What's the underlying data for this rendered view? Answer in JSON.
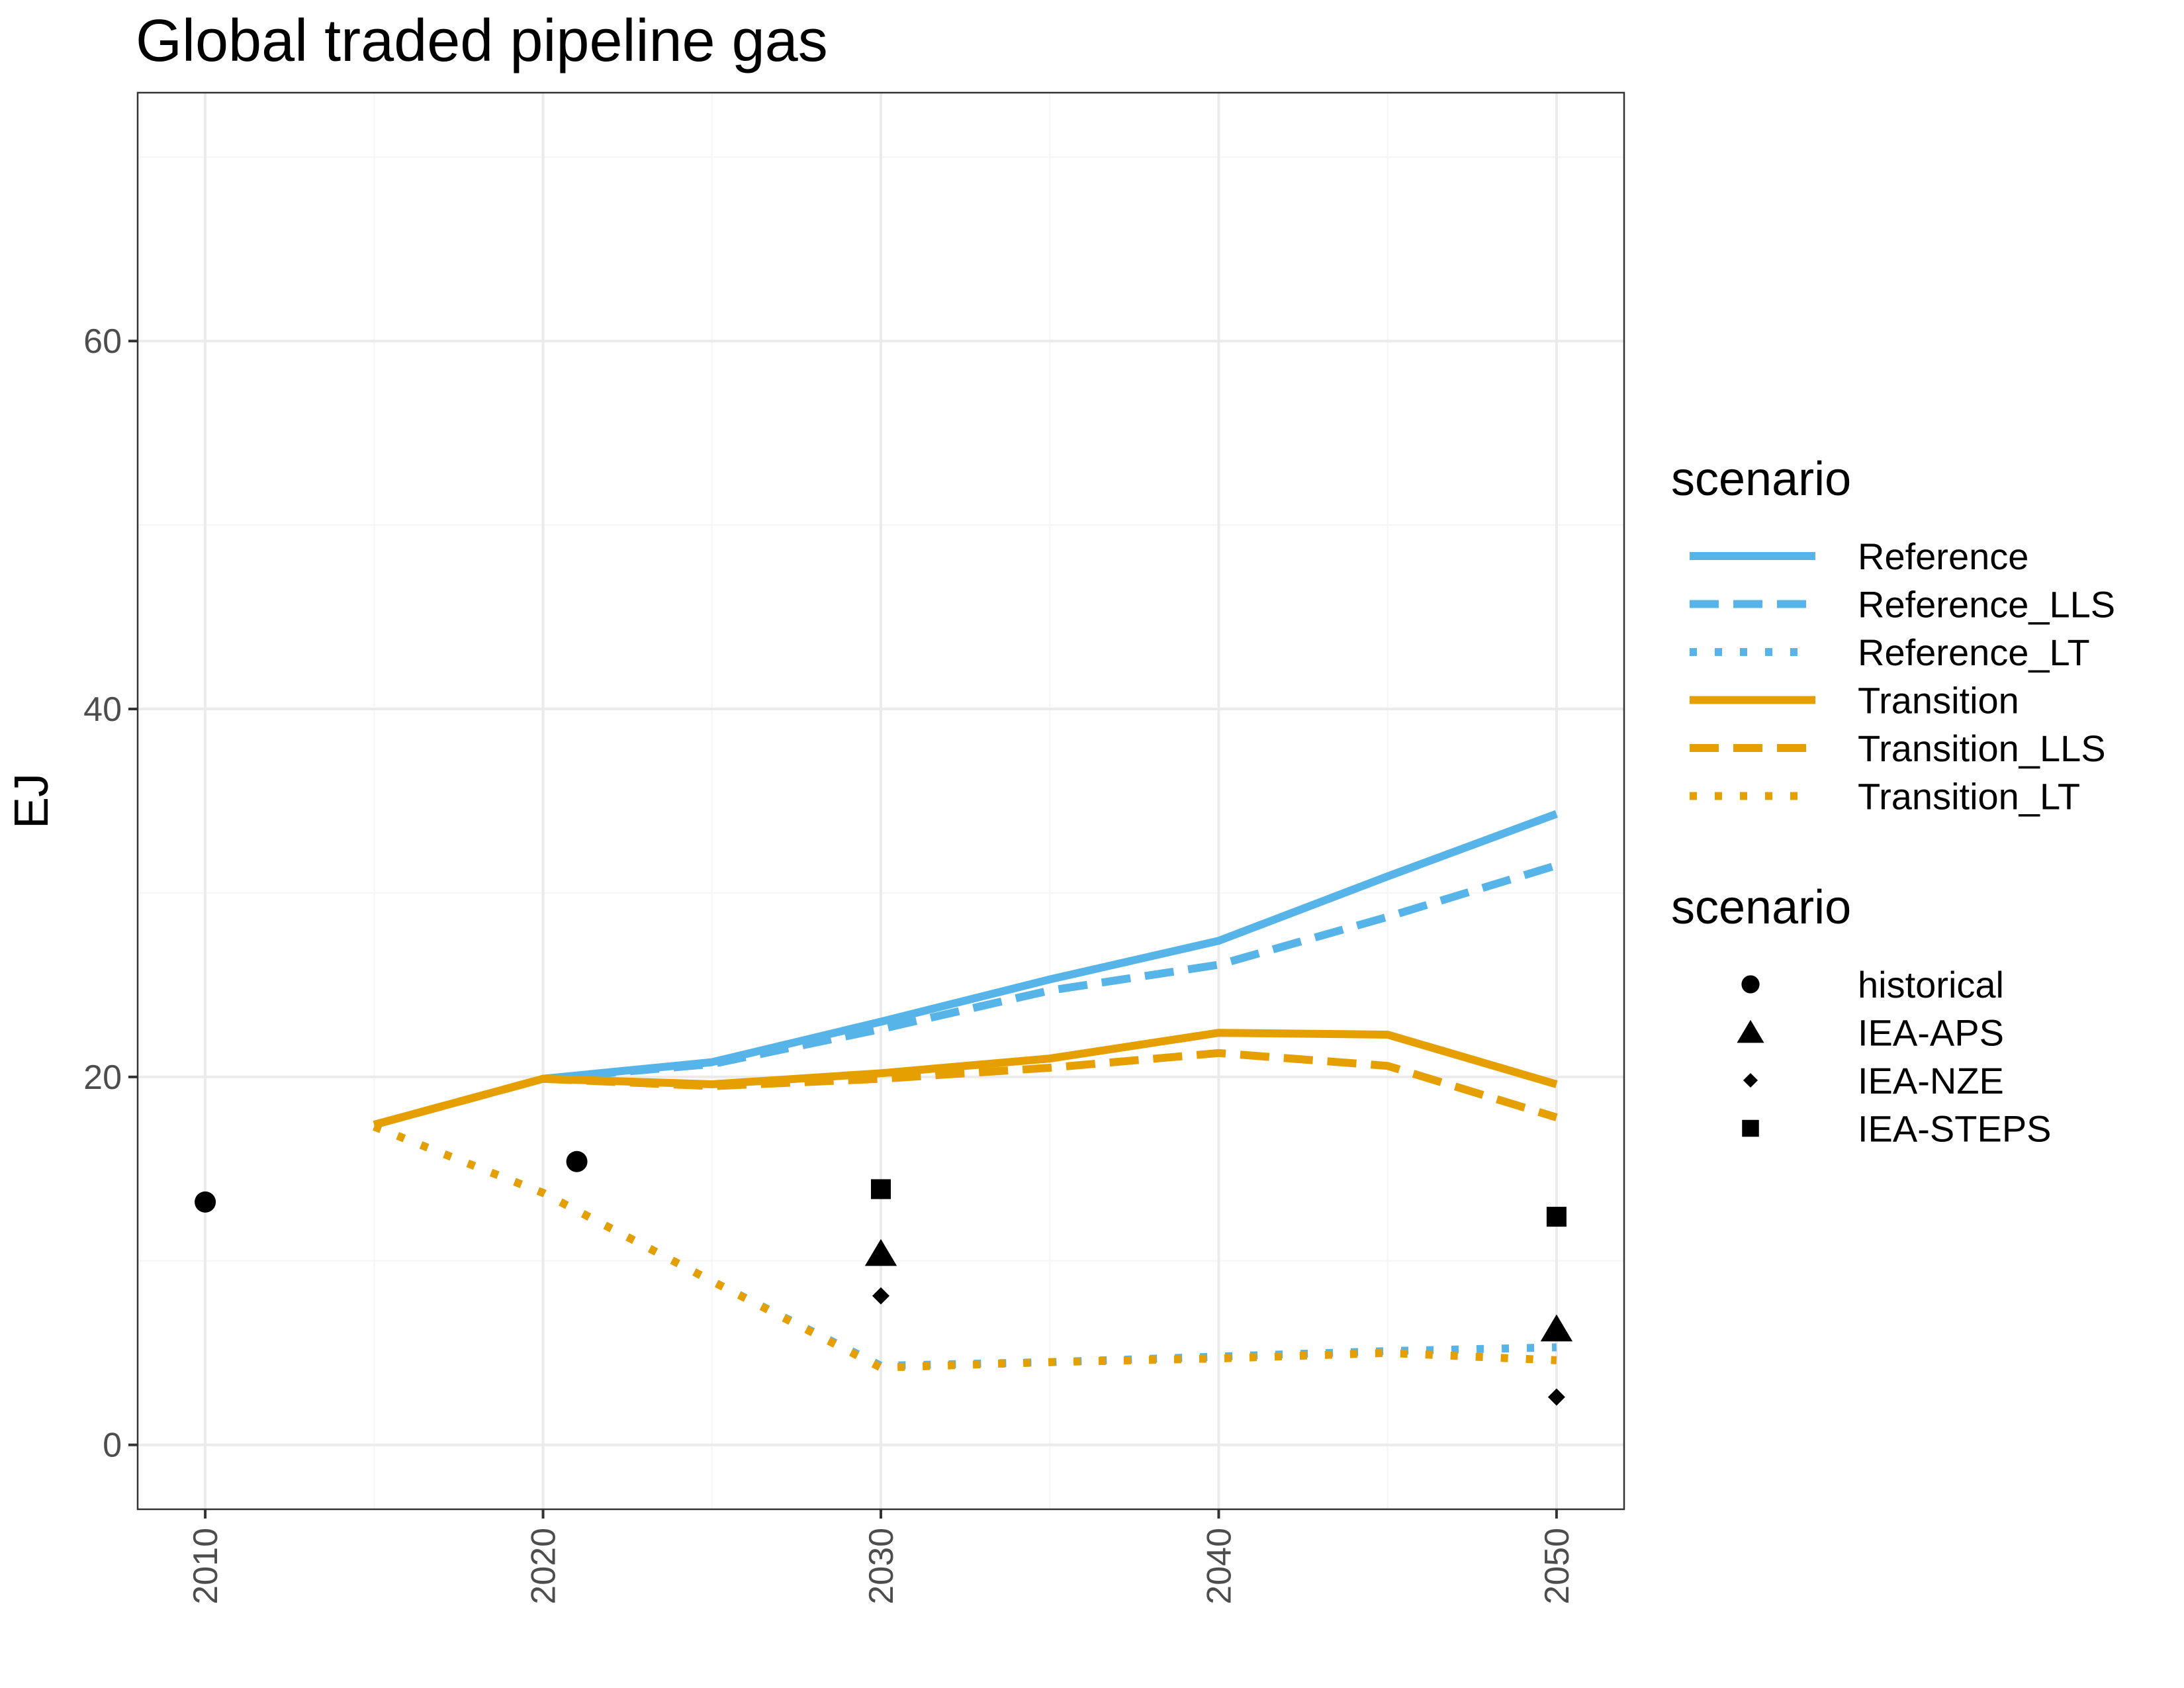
{
  "chart_data": {
    "type": "line",
    "title": "Global traded pipeline gas",
    "xlabel": "",
    "ylabel": "EJ",
    "xlim": [
      2008,
      2052
    ],
    "ylim": [
      -3.5,
      73.5
    ],
    "x_ticks": [
      "2010",
      "2020",
      "2030",
      "2040",
      "2050"
    ],
    "y_ticks": [
      "0",
      "20",
      "40",
      "60"
    ],
    "grid": true,
    "legend_position": "right",
    "line_legend_title": "scenario",
    "point_legend_title": "scenario",
    "series": [
      {
        "name": "Reference",
        "color": "#56B4E9",
        "dash": "solid",
        "x": [
          2020,
          2025,
          2030,
          2035,
          2040,
          2045,
          2050
        ],
        "y": [
          19.9,
          20.8,
          23.0,
          25.3,
          27.4,
          30.9,
          34.3
        ]
      },
      {
        "name": "Reference_LLS",
        "color": "#56B4E9",
        "dash": "dashed",
        "x": [
          2020,
          2025,
          2030,
          2035,
          2040,
          2045,
          2050
        ],
        "y": [
          19.9,
          20.7,
          22.6,
          24.7,
          26.1,
          28.7,
          31.5
        ]
      },
      {
        "name": "Reference_LT",
        "color": "#56B4E9",
        "dash": "dotted",
        "x": [
          2015,
          2020,
          2025,
          2030,
          2035,
          2040,
          2045,
          2050
        ],
        "y": [
          17.3,
          13.7,
          8.9,
          4.3,
          4.5,
          4.8,
          5.1,
          5.3
        ]
      },
      {
        "name": "Transition",
        "color": "#E69F00",
        "dash": "solid",
        "x": [
          2015,
          2020,
          2025,
          2030,
          2035,
          2040,
          2045,
          2050
        ],
        "y": [
          17.4,
          19.9,
          19.6,
          20.2,
          21.0,
          22.4,
          22.3,
          19.6
        ]
      },
      {
        "name": "Transition_LLS",
        "color": "#E69F00",
        "dash": "dashed",
        "x": [
          2015,
          2020,
          2025,
          2030,
          2035,
          2040,
          2045,
          2050
        ],
        "y": [
          17.4,
          19.9,
          19.5,
          19.9,
          20.5,
          21.3,
          20.6,
          17.8
        ]
      },
      {
        "name": "Transition_LT",
        "color": "#E69F00",
        "dash": "dotted",
        "x": [
          2015,
          2020,
          2025,
          2030,
          2035,
          2040,
          2045,
          2050
        ],
        "y": [
          17.3,
          13.7,
          8.9,
          4.2,
          4.5,
          4.7,
          5.0,
          4.6
        ]
      }
    ],
    "points": [
      {
        "name": "historical",
        "shape": "circle",
        "x": [
          2010,
          2021
        ],
        "y": [
          13.2,
          15.4
        ]
      },
      {
        "name": "IEA-APS",
        "shape": "triangle",
        "x": [
          2030,
          2050
        ],
        "y": [
          10.4,
          6.3
        ]
      },
      {
        "name": "IEA-NZE",
        "shape": "diamond",
        "x": [
          2030,
          2050
        ],
        "y": [
          8.1,
          2.6
        ]
      },
      {
        "name": "IEA-STEPS",
        "shape": "square",
        "x": [
          2030,
          2050
        ],
        "y": [
          13.9,
          12.4
        ]
      }
    ]
  }
}
